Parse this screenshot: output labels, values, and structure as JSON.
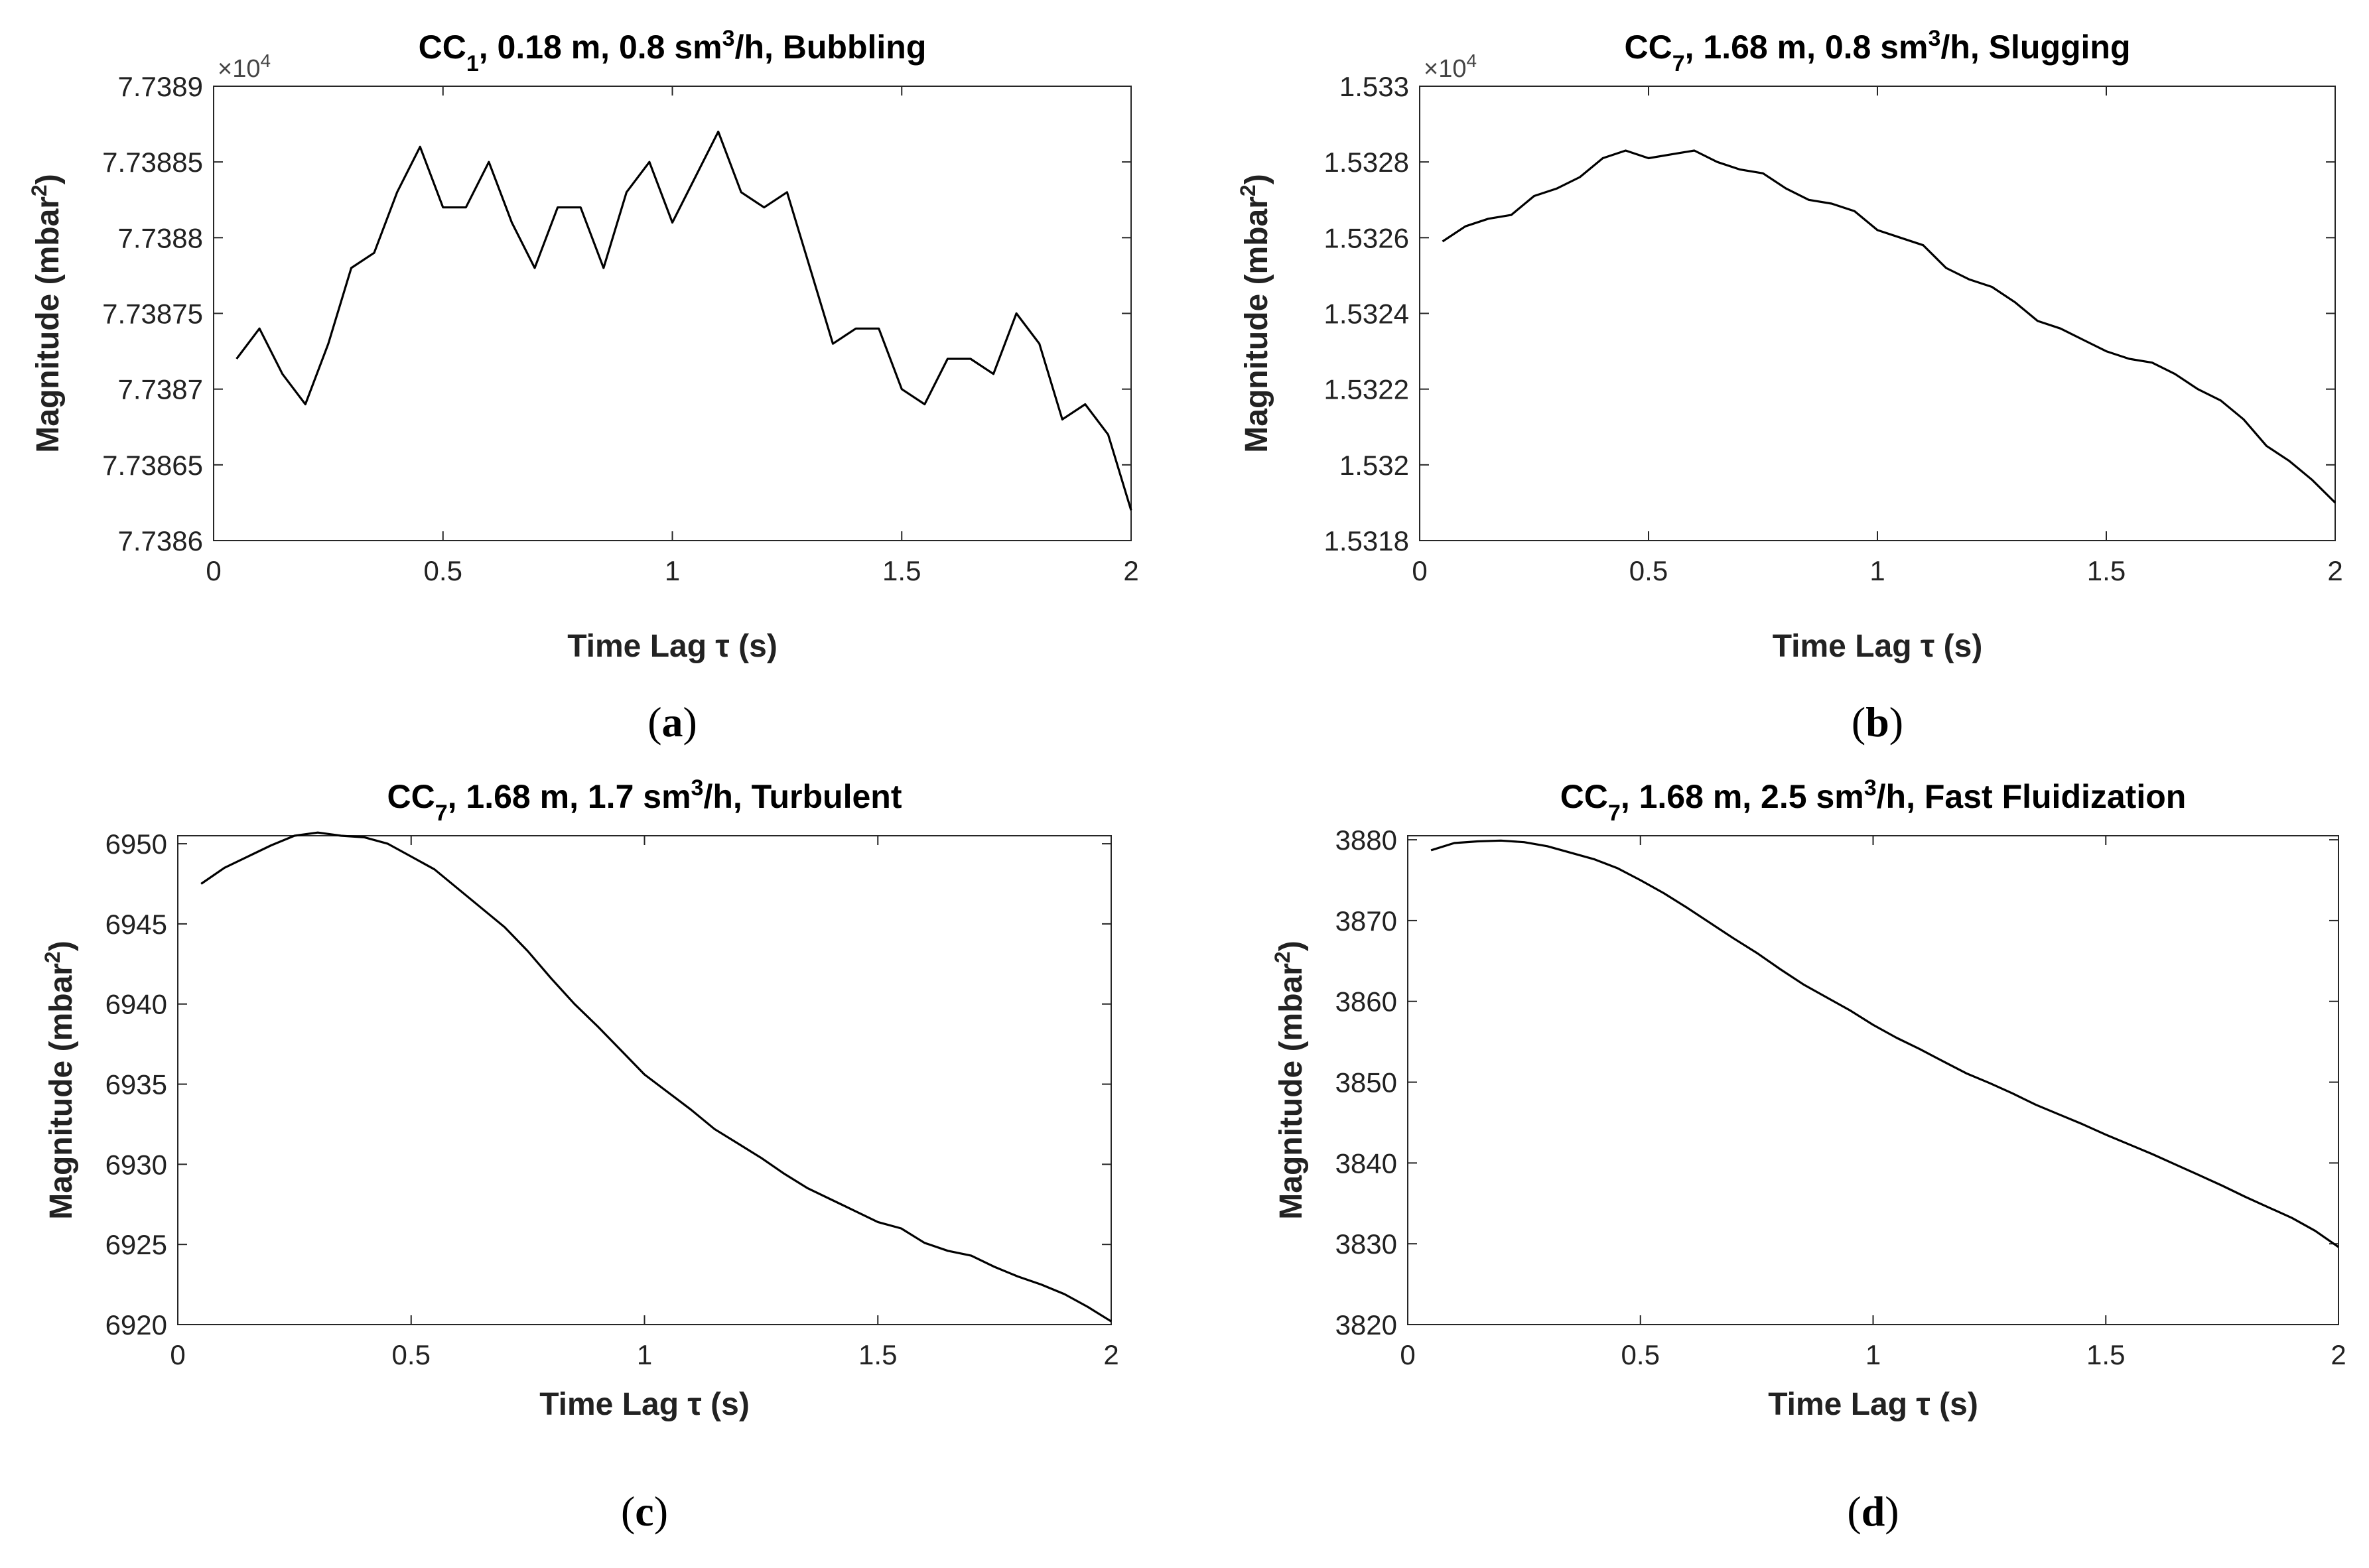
{
  "chart_data": [
    {
      "panel": "a",
      "panel_label": "a",
      "type": "line",
      "title": {
        "pre": "CC",
        "sub": "1",
        "mid": ", 0.18 m, 0.8 sm",
        "sup": "3",
        "post": "/h, Bubbling"
      },
      "xlabel": "Time Lag τ (s)",
      "ylabel": {
        "main": "Magnitude (mbar",
        "sup": "2",
        "close": ")"
      },
      "multiplier": {
        "base": "×10",
        "exp": "4"
      },
      "xlim": [
        0,
        2
      ],
      "ylim": [
        7.7386,
        7.7389
      ],
      "xticks": [
        0,
        0.5,
        1,
        1.5,
        2
      ],
      "xtick_labels": [
        "0",
        "0.5",
        "1",
        "1.5",
        "2"
      ],
      "yticks": [
        7.7386,
        7.73865,
        7.7387,
        7.73875,
        7.7388,
        7.73885,
        7.7389
      ],
      "ytick_labels": [
        "7.7386",
        "7.73865",
        "7.7387",
        "7.73875",
        "7.7388",
        "7.73885",
        "7.7389"
      ],
      "x": [
        0.05,
        0.1,
        0.15,
        0.2,
        0.25,
        0.3,
        0.35,
        0.4,
        0.45,
        0.5,
        0.55,
        0.6,
        0.65,
        0.7,
        0.75,
        0.8,
        0.85,
        0.9,
        0.95,
        1.0,
        1.05,
        1.1,
        1.15,
        1.2,
        1.25,
        1.3,
        1.35,
        1.4,
        1.45,
        1.5,
        1.55,
        1.6,
        1.65,
        1.7,
        1.75,
        1.8,
        1.85,
        1.9,
        1.95,
        2.0
      ],
      "values": [
        7.73872,
        7.73874,
        7.73871,
        7.73869,
        7.73873,
        7.73878,
        7.73879,
        7.73883,
        7.73886,
        7.73882,
        7.73882,
        7.73885,
        7.73881,
        7.73878,
        7.73882,
        7.73882,
        7.73878,
        7.73883,
        7.73885,
        7.73881,
        7.73884,
        7.73887,
        7.73883,
        7.73882,
        7.73883,
        7.73878,
        7.73873,
        7.73874,
        7.73874,
        7.7387,
        7.73869,
        7.73872,
        7.73872,
        7.73871,
        7.73875,
        7.73873,
        7.73868,
        7.73869,
        7.73867,
        7.73862
      ]
    },
    {
      "panel": "b",
      "panel_label": "b",
      "type": "line",
      "title": {
        "pre": "CC",
        "sub": "7",
        "mid": ", 1.68 m, 0.8 sm",
        "sup": "3",
        "post": "/h, Slugging"
      },
      "xlabel": "Time Lag τ (s)",
      "ylabel": {
        "main": "Magnitude (mbar",
        "sup": "2",
        "close": ")"
      },
      "multiplier": {
        "base": "×10",
        "exp": "4"
      },
      "xlim": [
        0,
        2
      ],
      "ylim": [
        1.5318,
        1.533
      ],
      "xticks": [
        0,
        0.5,
        1,
        1.5,
        2
      ],
      "xtick_labels": [
        "0",
        "0.5",
        "1",
        "1.5",
        "2"
      ],
      "yticks": [
        1.5318,
        1.532,
        1.5322,
        1.5324,
        1.5326,
        1.5328,
        1.533
      ],
      "ytick_labels": [
        "1.5318",
        "1.532",
        "1.5322",
        "1.5324",
        "1.5326",
        "1.5328",
        "1.533"
      ],
      "x": [
        0.05,
        0.1,
        0.15,
        0.2,
        0.25,
        0.3,
        0.35,
        0.4,
        0.45,
        0.5,
        0.55,
        0.6,
        0.65,
        0.7,
        0.75,
        0.8,
        0.85,
        0.9,
        0.95,
        1.0,
        1.05,
        1.1,
        1.15,
        1.2,
        1.25,
        1.3,
        1.35,
        1.4,
        1.45,
        1.5,
        1.55,
        1.6,
        1.65,
        1.7,
        1.75,
        1.8,
        1.85,
        1.9,
        1.95,
        2.0
      ],
      "values": [
        1.53259,
        1.53263,
        1.53265,
        1.53266,
        1.53271,
        1.53273,
        1.53276,
        1.53281,
        1.53283,
        1.53281,
        1.53282,
        1.53283,
        1.5328,
        1.53278,
        1.53277,
        1.53273,
        1.5327,
        1.53269,
        1.53267,
        1.53262,
        1.5326,
        1.53258,
        1.53252,
        1.53249,
        1.53247,
        1.53243,
        1.53238,
        1.53236,
        1.53233,
        1.5323,
        1.53228,
        1.53227,
        1.53224,
        1.5322,
        1.53217,
        1.53212,
        1.53205,
        1.53201,
        1.53196,
        1.5319
      ]
    },
    {
      "panel": "c",
      "panel_label": "c",
      "type": "line",
      "title": {
        "pre": "CC",
        "sub": "7",
        "mid": ", 1.68 m, 1.7 sm",
        "sup": "3",
        "post": "/h, Turbulent"
      },
      "xlabel": "Time Lag τ (s)",
      "ylabel": {
        "main": "Magnitude (mbar",
        "sup": "2",
        "close": ")"
      },
      "multiplier": null,
      "xlim": [
        0,
        2
      ],
      "ylim": [
        6920,
        6950.5
      ],
      "xticks": [
        0,
        0.5,
        1,
        1.5,
        2
      ],
      "xtick_labels": [
        "0",
        "0.5",
        "1",
        "1.5",
        "2"
      ],
      "yticks": [
        6920,
        6925,
        6930,
        6935,
        6940,
        6945,
        6950
      ],
      "ytick_labels": [
        "6920",
        "6925",
        "6930",
        "6935",
        "6940",
        "6945",
        "6950"
      ],
      "x": [
        0.05,
        0.1,
        0.15,
        0.2,
        0.25,
        0.3,
        0.35,
        0.4,
        0.45,
        0.5,
        0.55,
        0.6,
        0.65,
        0.7,
        0.75,
        0.8,
        0.85,
        0.9,
        0.95,
        1.0,
        1.05,
        1.1,
        1.15,
        1.2,
        1.25,
        1.3,
        1.35,
        1.4,
        1.45,
        1.5,
        1.55,
        1.6,
        1.65,
        1.7,
        1.75,
        1.8,
        1.85,
        1.9,
        1.95,
        2.0
      ],
      "values": [
        6947.5,
        6948.5,
        6949.2,
        6949.9,
        6950.5,
        6950.7,
        6950.5,
        6950.4,
        6950.0,
        6949.2,
        6948.4,
        6947.2,
        6946.0,
        6944.8,
        6943.3,
        6941.6,
        6940.0,
        6938.6,
        6937.1,
        6935.6,
        6934.5,
        6933.4,
        6932.2,
        6931.3,
        6930.4,
        6929.4,
        6928.5,
        6927.8,
        6927.1,
        6926.4,
        6926.0,
        6925.1,
        6924.6,
        6924.3,
        6923.6,
        6923.0,
        6922.5,
        6921.9,
        6921.1,
        6920.2
      ]
    },
    {
      "panel": "d",
      "panel_label": "d",
      "type": "line",
      "title": {
        "pre": "CC",
        "sub": "7",
        "mid": ", 1.68 m, 2.5 sm",
        "sup": "3",
        "post": "/h, Fast Fluidization"
      },
      "xlabel": "Time Lag τ (s)",
      "ylabel": {
        "main": "Magnitude (mbar",
        "sup": "2",
        "close": ")"
      },
      "multiplier": null,
      "xlim": [
        0,
        2
      ],
      "ylim": [
        3820,
        3880.5
      ],
      "xticks": [
        0,
        0.5,
        1,
        1.5,
        2
      ],
      "xtick_labels": [
        "0",
        "0.5",
        "1",
        "1.5",
        "2"
      ],
      "yticks": [
        3820,
        3830,
        3840,
        3850,
        3860,
        3870,
        3880
      ],
      "ytick_labels": [
        "3820",
        "3830",
        "3840",
        "3850",
        "3860",
        "3870",
        "3880"
      ],
      "x": [
        0.05,
        0.1,
        0.15,
        0.2,
        0.25,
        0.3,
        0.35,
        0.4,
        0.45,
        0.5,
        0.55,
        0.6,
        0.65,
        0.7,
        0.75,
        0.8,
        0.85,
        0.9,
        0.95,
        1.0,
        1.05,
        1.1,
        1.15,
        1.2,
        1.25,
        1.3,
        1.35,
        1.4,
        1.45,
        1.5,
        1.55,
        1.6,
        1.65,
        1.7,
        1.75,
        1.8,
        1.85,
        1.9,
        1.95,
        2.0
      ],
      "values": [
        3878.7,
        3879.6,
        3879.8,
        3879.9,
        3879.7,
        3879.2,
        3878.4,
        3877.6,
        3876.5,
        3875.0,
        3873.4,
        3871.6,
        3869.7,
        3867.8,
        3866.0,
        3864.0,
        3862.1,
        3860.5,
        3858.9,
        3857.1,
        3855.5,
        3854.1,
        3852.6,
        3851.1,
        3849.9,
        3848.6,
        3847.2,
        3846.0,
        3844.8,
        3843.5,
        3842.3,
        3841.1,
        3839.8,
        3838.5,
        3837.2,
        3835.8,
        3834.5,
        3833.2,
        3831.6,
        3829.6
      ]
    }
  ]
}
